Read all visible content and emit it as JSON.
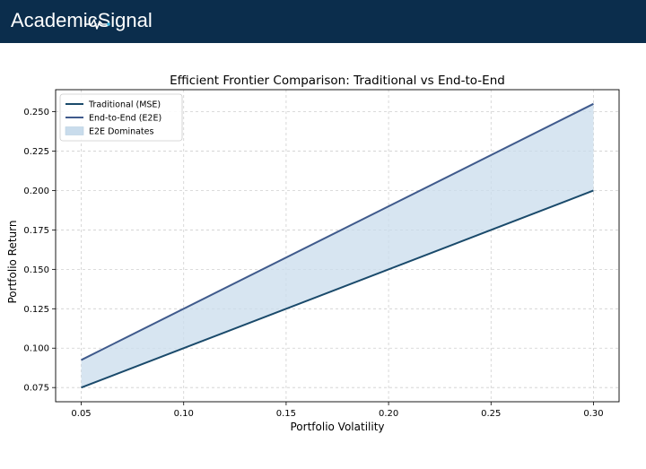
{
  "header": {
    "brand_part1": "Academic",
    "brand_part2": "Signal",
    "brand_color": "#0b2d4c",
    "accent_color": "#3db8e0"
  },
  "chart_data": {
    "type": "line",
    "title": "Efficient Frontier Comparison: Traditional vs End-to-End",
    "xlabel": "Portfolio Volatility",
    "ylabel": "Portfolio Return",
    "xlim": [
      0.0375,
      0.3125
    ],
    "ylim": [
      0.066,
      0.264
    ],
    "xticks": [
      0.05,
      0.1,
      0.15,
      0.2,
      0.25,
      0.3
    ],
    "xtick_labels": [
      "0.05",
      "0.10",
      "0.15",
      "0.20",
      "0.25",
      "0.30"
    ],
    "yticks": [
      0.075,
      0.1,
      0.125,
      0.15,
      0.175,
      0.2,
      0.225,
      0.25
    ],
    "ytick_labels": [
      "0.075",
      "0.100",
      "0.125",
      "0.150",
      "0.175",
      "0.200",
      "0.225",
      "0.250"
    ],
    "grid": true,
    "legend_position": "top-left",
    "series": [
      {
        "name": "Traditional (MSE)",
        "color": "#1a4a6b",
        "x": [
          0.05,
          0.3
        ],
        "y": [
          0.075,
          0.2
        ]
      },
      {
        "name": "End-to-End (E2E)",
        "color": "#3f5a8c",
        "x": [
          0.05,
          0.3
        ],
        "y": [
          0.0925,
          0.255
        ]
      }
    ],
    "fill": {
      "name": "E2E Dominates",
      "color": "#c9dcec",
      "between": [
        "Traditional (MSE)",
        "End-to-End (E2E)"
      ]
    }
  }
}
